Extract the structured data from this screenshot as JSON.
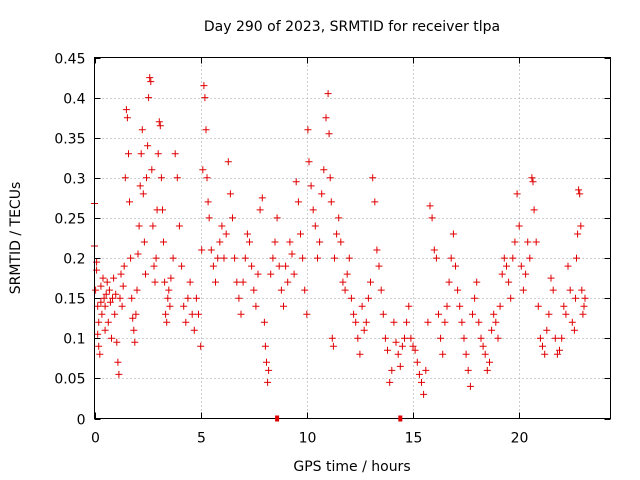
{
  "chart_data": {
    "type": "scatter",
    "title": "Day 290 of 2023, SRMTID for receiver tlpa",
    "xlabel": "GPS time / hours",
    "ylabel": "SRMTID / TECUs",
    "xlim": [
      0,
      24.3
    ],
    "ylim": [
      0,
      0.45
    ],
    "xticks": [
      0,
      5,
      10,
      15,
      20
    ],
    "xtick_labels": [
      "0",
      "5",
      "10",
      "15",
      "20"
    ],
    "yticks": [
      0,
      0.05,
      0.1,
      0.15,
      0.2,
      0.25,
      0.3,
      0.35,
      0.4,
      0.45
    ],
    "ytick_labels": [
      "0",
      "0.05",
      "0.1",
      "0.15",
      "0.2",
      "0.25",
      "0.3",
      "0.35",
      "0.4",
      "0.45"
    ],
    "grid": true,
    "marker": "+",
    "color": "#e00000",
    "series": [
      {
        "values": [
          [
            0.0,
            0.268
          ],
          [
            0.0,
            0.215
          ],
          [
            0.05,
            0.16
          ],
          [
            0.1,
            0.195
          ],
          [
            0.1,
            0.185
          ],
          [
            0.15,
            0.14
          ],
          [
            0.15,
            0.105
          ],
          [
            0.2,
            0.12
          ],
          [
            0.2,
            0.09
          ],
          [
            0.25,
            0.08
          ],
          [
            0.3,
            0.145
          ],
          [
            0.3,
            0.165
          ],
          [
            0.35,
            0.13
          ],
          [
            0.4,
            0.175
          ],
          [
            0.45,
            0.15
          ],
          [
            0.5,
            0.14
          ],
          [
            0.5,
            0.11
          ],
          [
            0.55,
            0.155
          ],
          [
            0.6,
            0.17
          ],
          [
            0.65,
            0.12
          ],
          [
            0.7,
            0.16
          ],
          [
            0.75,
            0.145
          ],
          [
            0.8,
            0.1
          ],
          [
            0.85,
            0.15
          ],
          [
            0.9,
            0.175
          ],
          [
            0.95,
            0.13
          ],
          [
            1.0,
            0.155
          ],
          [
            1.05,
            0.095
          ],
          [
            1.1,
            0.07
          ],
          [
            1.15,
            0.055
          ],
          [
            1.2,
            0.15
          ],
          [
            1.25,
            0.18
          ],
          [
            1.3,
            0.14
          ],
          [
            1.35,
            0.165
          ],
          [
            1.4,
            0.19
          ],
          [
            1.45,
            0.3
          ],
          [
            1.5,
            0.385
          ],
          [
            1.55,
            0.375
          ],
          [
            1.6,
            0.33
          ],
          [
            1.65,
            0.27
          ],
          [
            1.7,
            0.2
          ],
          [
            1.75,
            0.15
          ],
          [
            1.8,
            0.125
          ],
          [
            1.85,
            0.11
          ],
          [
            1.9,
            0.095
          ],
          [
            1.95,
            0.13
          ],
          [
            2.0,
            0.16
          ],
          [
            2.05,
            0.205
          ],
          [
            2.1,
            0.24
          ],
          [
            2.15,
            0.29
          ],
          [
            2.2,
            0.33
          ],
          [
            2.25,
            0.36
          ],
          [
            2.3,
            0.28
          ],
          [
            2.35,
            0.22
          ],
          [
            2.4,
            0.18
          ],
          [
            2.45,
            0.3
          ],
          [
            2.5,
            0.34
          ],
          [
            2.55,
            0.4
          ],
          [
            2.6,
            0.425
          ],
          [
            2.65,
            0.42
          ],
          [
            2.7,
            0.31
          ],
          [
            2.75,
            0.24
          ],
          [
            2.8,
            0.19
          ],
          [
            2.85,
            0.17
          ],
          [
            2.9,
            0.2
          ],
          [
            2.95,
            0.26
          ],
          [
            3.0,
            0.33
          ],
          [
            3.05,
            0.37
          ],
          [
            3.1,
            0.365
          ],
          [
            3.15,
            0.3
          ],
          [
            3.2,
            0.26
          ],
          [
            3.25,
            0.22
          ],
          [
            3.3,
            0.17
          ],
          [
            3.35,
            0.13
          ],
          [
            3.4,
            0.12
          ],
          [
            3.45,
            0.15
          ],
          [
            3.5,
            0.16
          ],
          [
            3.55,
            0.14
          ],
          [
            3.6,
            0.175
          ],
          [
            3.7,
            0.2
          ],
          [
            3.8,
            0.33
          ],
          [
            3.9,
            0.3
          ],
          [
            4.0,
            0.24
          ],
          [
            4.1,
            0.19
          ],
          [
            4.2,
            0.14
          ],
          [
            4.3,
            0.12
          ],
          [
            4.4,
            0.15
          ],
          [
            4.5,
            0.17
          ],
          [
            4.6,
            0.13
          ],
          [
            4.7,
            0.11
          ],
          [
            4.8,
            0.15
          ],
          [
            4.9,
            0.13
          ],
          [
            5.0,
            0.09
          ],
          [
            5.05,
            0.21
          ],
          [
            5.1,
            0.31
          ],
          [
            5.15,
            0.415
          ],
          [
            5.2,
            0.4
          ],
          [
            5.25,
            0.36
          ],
          [
            5.3,
            0.3
          ],
          [
            5.35,
            0.27
          ],
          [
            5.4,
            0.25
          ],
          [
            5.5,
            0.21
          ],
          [
            5.6,
            0.19
          ],
          [
            5.7,
            0.17
          ],
          [
            5.8,
            0.2
          ],
          [
            5.9,
            0.22
          ],
          [
            6.0,
            0.24
          ],
          [
            6.1,
            0.2
          ],
          [
            6.2,
            0.23
          ],
          [
            6.3,
            0.32
          ],
          [
            6.4,
            0.28
          ],
          [
            6.5,
            0.25
          ],
          [
            6.6,
            0.2
          ],
          [
            6.7,
            0.17
          ],
          [
            6.8,
            0.15
          ],
          [
            6.9,
            0.13
          ],
          [
            7.0,
            0.17
          ],
          [
            7.1,
            0.2
          ],
          [
            7.2,
            0.23
          ],
          [
            7.3,
            0.22
          ],
          [
            7.4,
            0.19
          ],
          [
            7.5,
            0.16
          ],
          [
            7.6,
            0.14
          ],
          [
            7.7,
            0.18
          ],
          [
            7.8,
            0.26
          ],
          [
            7.9,
            0.275
          ],
          [
            8.0,
            0.12
          ],
          [
            8.05,
            0.09
          ],
          [
            8.1,
            0.07
          ],
          [
            8.15,
            0.045
          ],
          [
            8.2,
            0.06
          ],
          [
            8.3,
            0.18
          ],
          [
            8.4,
            0.2
          ],
          [
            8.5,
            0.22
          ],
          [
            8.6,
            0.25
          ],
          [
            8.7,
            0.19
          ],
          [
            8.8,
            0.16
          ],
          [
            8.9,
            0.14
          ],
          [
            9.0,
            0.19
          ],
          [
            9.1,
            0.17
          ],
          [
            9.2,
            0.22
          ],
          [
            9.3,
            0.205
          ],
          [
            9.4,
            0.18
          ],
          [
            9.5,
            0.295
          ],
          [
            9.6,
            0.27
          ],
          [
            9.7,
            0.23
          ],
          [
            9.8,
            0.2
          ],
          [
            9.9,
            0.16
          ],
          [
            10.0,
            0.13
          ],
          [
            10.05,
            0.36
          ],
          [
            10.1,
            0.32
          ],
          [
            10.2,
            0.29
          ],
          [
            10.3,
            0.26
          ],
          [
            10.4,
            0.24
          ],
          [
            10.5,
            0.2
          ],
          [
            10.6,
            0.22
          ],
          [
            10.7,
            0.28
          ],
          [
            10.8,
            0.31
          ],
          [
            10.9,
            0.375
          ],
          [
            11.0,
            0.405
          ],
          [
            11.05,
            0.355
          ],
          [
            11.1,
            0.3
          ],
          [
            11.15,
            0.27
          ],
          [
            11.2,
            0.1
          ],
          [
            11.25,
            0.09
          ],
          [
            11.3,
            0.2
          ],
          [
            11.4,
            0.23
          ],
          [
            11.5,
            0.25
          ],
          [
            11.6,
            0.22
          ],
          [
            11.7,
            0.17
          ],
          [
            11.8,
            0.16
          ],
          [
            11.9,
            0.18
          ],
          [
            12.0,
            0.2
          ],
          [
            12.1,
            0.15
          ],
          [
            12.2,
            0.13
          ],
          [
            12.3,
            0.12
          ],
          [
            12.4,
            0.1
          ],
          [
            12.5,
            0.08
          ],
          [
            12.6,
            0.14
          ],
          [
            12.7,
            0.11
          ],
          [
            12.8,
            0.12
          ],
          [
            12.9,
            0.15
          ],
          [
            13.0,
            0.17
          ],
          [
            13.1,
            0.3
          ],
          [
            13.2,
            0.27
          ],
          [
            13.3,
            0.21
          ],
          [
            13.4,
            0.19
          ],
          [
            13.5,
            0.16
          ],
          [
            13.6,
            0.13
          ],
          [
            13.7,
            0.1
          ],
          [
            13.8,
            0.085
          ],
          [
            13.9,
            0.045
          ],
          [
            14.0,
            0.06
          ],
          [
            14.1,
            0.12
          ],
          [
            14.2,
            0.095
          ],
          [
            14.3,
            0.08
          ],
          [
            14.4,
            0.065
          ],
          [
            14.5,
            0.09
          ],
          [
            14.6,
            0.1
          ],
          [
            14.7,
            0.12
          ],
          [
            14.8,
            0.14
          ],
          [
            14.9,
            0.1
          ],
          [
            15.0,
            0.09
          ],
          [
            15.1,
            0.085
          ],
          [
            15.2,
            0.07
          ],
          [
            15.3,
            0.055
          ],
          [
            15.4,
            0.045
          ],
          [
            15.5,
            0.03
          ],
          [
            15.6,
            0.06
          ],
          [
            15.7,
            0.12
          ],
          [
            15.8,
            0.265
          ],
          [
            15.9,
            0.25
          ],
          [
            16.0,
            0.21
          ],
          [
            16.1,
            0.2
          ],
          [
            16.2,
            0.13
          ],
          [
            16.3,
            0.1
          ],
          [
            16.4,
            0.08
          ],
          [
            16.5,
            0.12
          ],
          [
            16.6,
            0.14
          ],
          [
            16.7,
            0.17
          ],
          [
            16.8,
            0.2
          ],
          [
            16.9,
            0.23
          ],
          [
            17.0,
            0.19
          ],
          [
            17.1,
            0.16
          ],
          [
            17.2,
            0.14
          ],
          [
            17.3,
            0.12
          ],
          [
            17.4,
            0.1
          ],
          [
            17.5,
            0.08
          ],
          [
            17.6,
            0.06
          ],
          [
            17.7,
            0.04
          ],
          [
            17.8,
            0.13
          ],
          [
            17.9,
            0.15
          ],
          [
            18.0,
            0.17
          ],
          [
            18.1,
            0.12
          ],
          [
            18.2,
            0.1
          ],
          [
            18.3,
            0.09
          ],
          [
            18.4,
            0.08
          ],
          [
            18.5,
            0.06
          ],
          [
            18.6,
            0.07
          ],
          [
            18.7,
            0.11
          ],
          [
            18.8,
            0.13
          ],
          [
            18.9,
            0.12
          ],
          [
            19.0,
            0.1
          ],
          [
            19.1,
            0.14
          ],
          [
            19.2,
            0.18
          ],
          [
            19.3,
            0.2
          ],
          [
            19.4,
            0.19
          ],
          [
            19.5,
            0.17
          ],
          [
            19.6,
            0.15
          ],
          [
            19.7,
            0.2
          ],
          [
            19.8,
            0.22
          ],
          [
            19.9,
            0.28
          ],
          [
            20.0,
            0.24
          ],
          [
            20.1,
            0.19
          ],
          [
            20.2,
            0.16
          ],
          [
            20.3,
            0.18
          ],
          [
            20.4,
            0.22
          ],
          [
            20.5,
            0.2
          ],
          [
            20.6,
            0.3
          ],
          [
            20.65,
            0.295
          ],
          [
            20.7,
            0.26
          ],
          [
            20.8,
            0.22
          ],
          [
            20.9,
            0.14
          ],
          [
            21.0,
            0.1
          ],
          [
            21.1,
            0.09
          ],
          [
            21.2,
            0.08
          ],
          [
            21.3,
            0.11
          ],
          [
            21.4,
            0.13
          ],
          [
            21.5,
            0.175
          ],
          [
            21.6,
            0.16
          ],
          [
            21.7,
            0.1
          ],
          [
            21.8,
            0.08
          ],
          [
            21.9,
            0.085
          ],
          [
            22.0,
            0.1
          ],
          [
            22.1,
            0.14
          ],
          [
            22.2,
            0.13
          ],
          [
            22.3,
            0.19
          ],
          [
            22.4,
            0.16
          ],
          [
            22.5,
            0.12
          ],
          [
            22.6,
            0.11
          ],
          [
            22.65,
            0.15
          ],
          [
            22.7,
            0.2
          ],
          [
            22.75,
            0.23
          ],
          [
            22.8,
            0.285
          ],
          [
            22.85,
            0.28
          ],
          [
            22.9,
            0.24
          ],
          [
            22.95,
            0.16
          ],
          [
            23.0,
            0.13
          ],
          [
            23.05,
            0.14
          ],
          [
            23.1,
            0.15
          ]
        ]
      }
    ],
    "bottom_marks": [
      8.6,
      14.4
    ]
  }
}
